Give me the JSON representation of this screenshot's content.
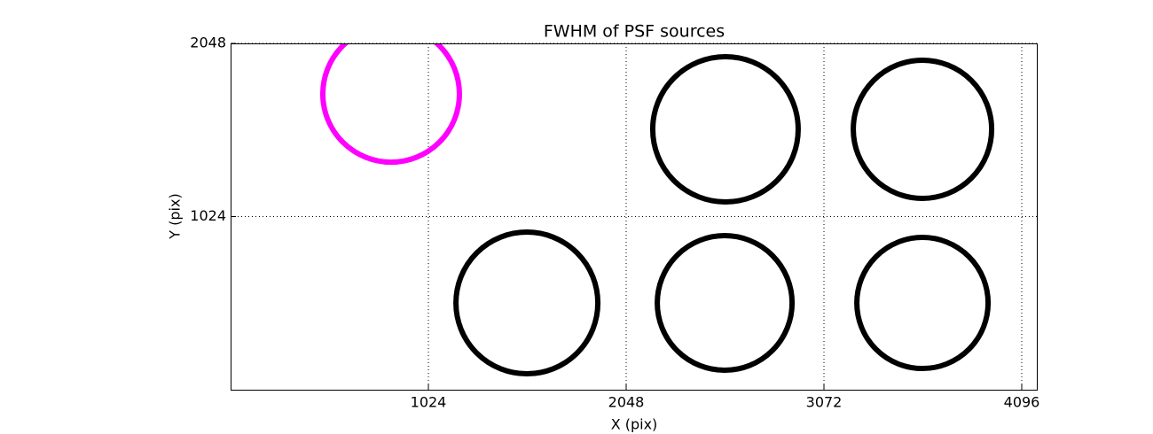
{
  "chart_data": {
    "type": "scatter",
    "title": "FWHM of PSF sources",
    "x_label": "X (pix)",
    "y_label": "Y (pix)",
    "x": [
      831,
      2562,
      3582,
      1534,
      2558,
      3582
    ],
    "y": [
      1749,
      1540,
      1540,
      513,
      513,
      513
    ],
    "sizes": [
      77,
      82,
      78,
      80,
      76,
      74
    ],
    "colors": [
      "#ff00ff",
      "#000000",
      "#000000",
      "#000000",
      "#000000",
      "#000000"
    ],
    "xlim": [
      0,
      4174
    ],
    "ylim": [
      0,
      2048
    ],
    "xticks": [
      1024,
      2048,
      3072,
      4096
    ],
    "yticks": [
      1024,
      2048
    ],
    "grid": true
  }
}
